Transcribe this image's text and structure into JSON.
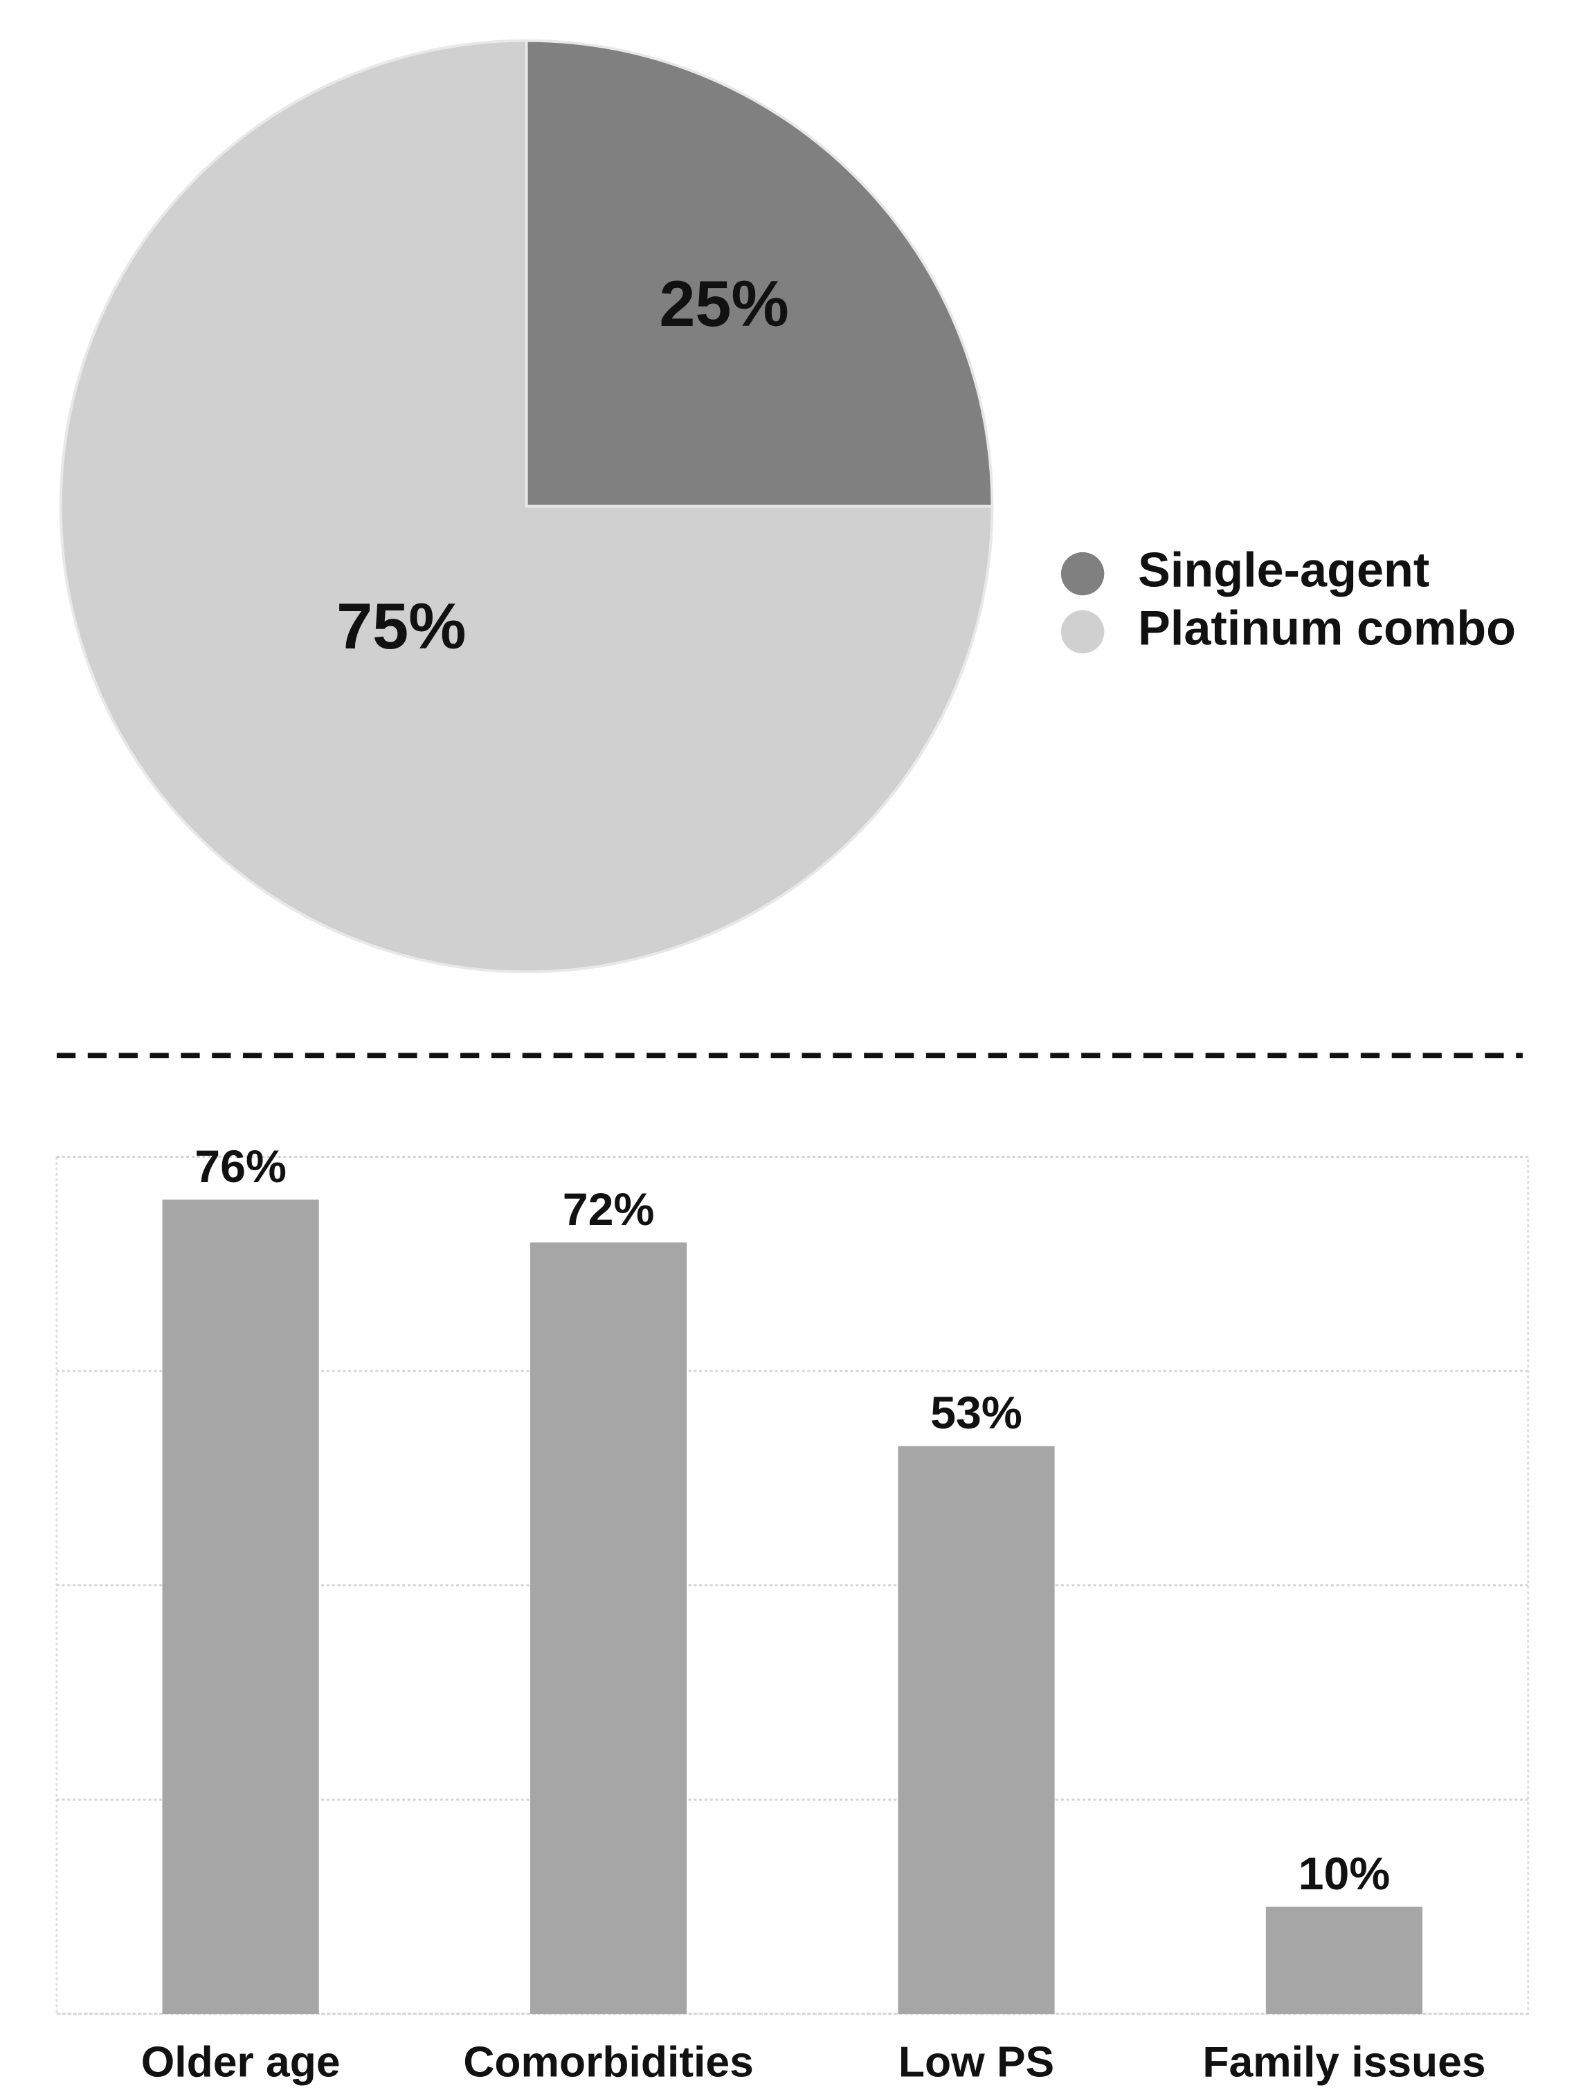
{
  "chart_data": [
    {
      "type": "pie",
      "categories": [
        "Single-agent",
        "Platinum combo"
      ],
      "values": [
        25,
        75
      ],
      "value_labels": [
        "25%",
        "75%"
      ],
      "colors": [
        "#808080",
        "#d0d0d0"
      ],
      "legend": "right"
    },
    {
      "type": "bar",
      "categories": [
        "Older age",
        "Comorbidities",
        "Low PS",
        "Family issues"
      ],
      "values": [
        76,
        72,
        53,
        10
      ],
      "value_labels": [
        "76%",
        "72%",
        "53%",
        "10%"
      ],
      "color": "#a6a6a6",
      "ylim": [
        0,
        80
      ],
      "yticks": [
        0,
        20,
        40,
        60,
        80
      ],
      "grid": true
    }
  ]
}
